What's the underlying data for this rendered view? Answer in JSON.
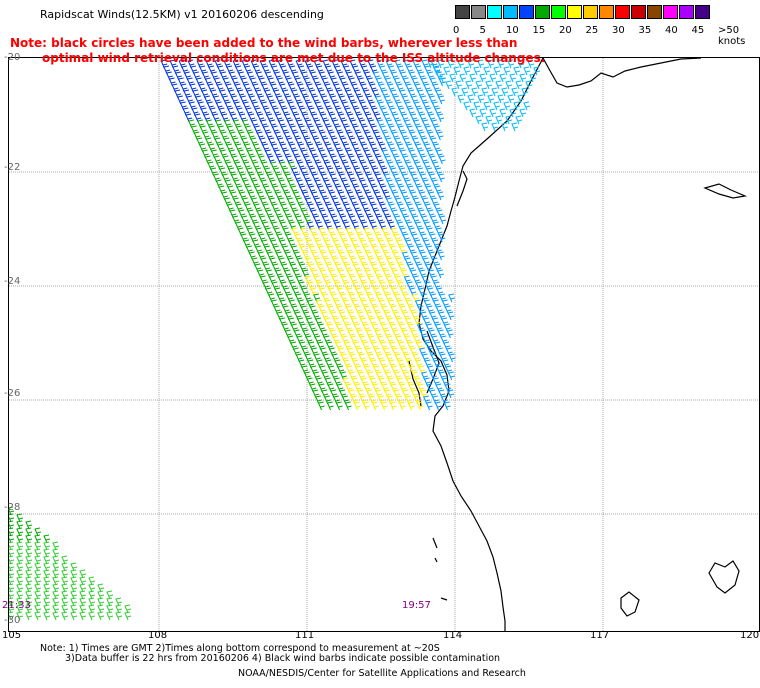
{
  "title": "Rapidscat Winds(12.5KM) v1 20160206 descending",
  "note": {
    "line1": "Note: black circles have been added to the wind barbs, wherever less than",
    "line2": "optimal wind retrieval conditions are met due to the ISS altitude changes."
  },
  "legend": {
    "colors": [
      "#444444",
      "#888888",
      "#00ffff",
      "#00bbff",
      "#0044ff",
      "#00aa00",
      "#00ff00",
      "#ffff00",
      "#ffcc00",
      "#ff8800",
      "#ff0000",
      "#cc0000",
      "#884400",
      "#ff00ff",
      "#aa00ff",
      "#440088"
    ],
    "labels": [
      "0",
      "5",
      "10",
      "15",
      "20",
      "25",
      "30",
      "35",
      "40",
      "45",
      ">50 knots"
    ]
  },
  "axes": {
    "x_labels": [
      "105",
      "108",
      "111",
      "114",
      "117",
      "120"
    ],
    "y_labels": [
      "-20",
      "-22",
      "-24",
      "-26",
      "-28",
      "-30"
    ]
  },
  "times": [
    "21:33",
    "19:57"
  ],
  "footer": {
    "line1": "Note: 1) Times are GMT 2)Times along bottom correspond to measurement at ~20S",
    "line2": "3)Data buffer is 22 hrs from 20160206 4) Black wind barbs indicate possible contamination",
    "line3": "NOAA/NESDIS/Center for Satellite Applications and Research"
  }
}
